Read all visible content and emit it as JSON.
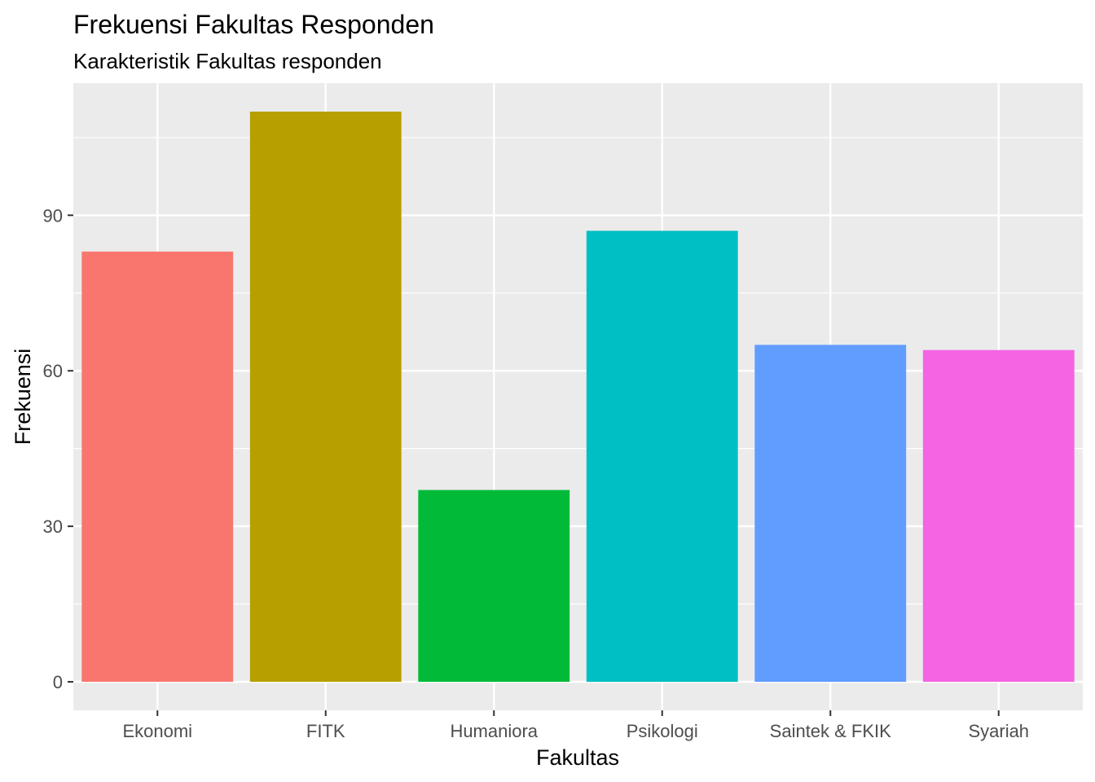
{
  "chart_data": {
    "type": "bar",
    "title": "Frekuensi Fakultas Responden",
    "subtitle": "Karakteristik Fakultas responden",
    "xlabel": "Fakultas",
    "ylabel": "Frekuensi",
    "categories": [
      "Ekonomi",
      "FITK",
      "Humaniora",
      "Psikologi",
      "Saintek & FKIK",
      "Syariah"
    ],
    "values": [
      83,
      110,
      37,
      87,
      65,
      64
    ],
    "colors": [
      "#F8766D",
      "#B79F00",
      "#00BA38",
      "#00BFC4",
      "#619CFF",
      "#F564E3"
    ],
    "ylim": [
      -5.5,
      115.5
    ],
    "y_ticks": [
      0,
      30,
      60,
      90
    ],
    "grid": true,
    "legend": "none",
    "panel_background": "#EBEBEB",
    "grid_color": "#FFFFFF"
  }
}
